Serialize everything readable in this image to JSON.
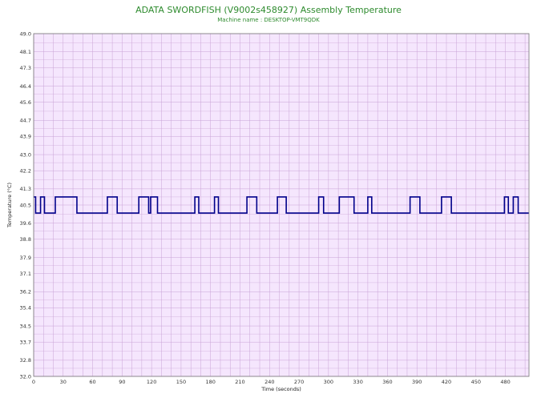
{
  "chart_data": {
    "type": "line",
    "title": "ADATA SWORDFISH (V9002s458927) Assembly Temperature",
    "subtitle": "Machine name : DESKTOP-VMT9QDK",
    "xlabel": "Time (seconds)",
    "ylabel": "Temperature (°C)",
    "xlim": [
      0,
      504
    ],
    "ylim": [
      32.0,
      49.0
    ],
    "x_ticks": [
      0,
      30,
      60,
      90,
      120,
      150,
      180,
      210,
      240,
      270,
      300,
      330,
      360,
      390,
      420,
      450,
      480
    ],
    "y_ticks": [
      32.0,
      32.8,
      33.7,
      34.5,
      35.4,
      36.2,
      37.1,
      37.9,
      38.8,
      39.6,
      40.5,
      41.3,
      42.2,
      43.0,
      43.9,
      44.7,
      45.6,
      46.4,
      47.3,
      48.1,
      49.0
    ],
    "grid": true,
    "colors": {
      "line": "#00008b",
      "plot_background": "#f5e6fd",
      "grid": "#c9a3d6",
      "title": "#2e8b2e"
    },
    "series": [
      {
        "x": [
          0,
          2,
          2,
          7,
          7,
          11,
          11,
          22,
          22,
          44,
          44,
          75,
          75,
          85,
          85,
          107,
          107,
          117,
          117,
          119,
          119,
          126,
          126,
          164,
          164,
          168,
          168,
          184,
          184,
          188,
          188,
          217,
          217,
          227,
          227,
          248,
          248,
          257,
          257,
          290,
          290,
          295,
          295,
          311,
          311,
          326,
          326,
          340,
          340,
          344,
          344,
          383,
          383,
          393,
          393,
          415,
          415,
          425,
          425,
          479,
          479,
          483,
          483,
          488,
          488,
          493,
          493,
          504
        ],
        "y": [
          40.9,
          40.9,
          40.1,
          40.1,
          40.9,
          40.9,
          40.1,
          40.1,
          40.9,
          40.9,
          40.1,
          40.1,
          40.9,
          40.9,
          40.1,
          40.1,
          40.9,
          40.9,
          40.1,
          40.1,
          40.9,
          40.9,
          40.1,
          40.1,
          40.9,
          40.9,
          40.1,
          40.1,
          40.9,
          40.9,
          40.1,
          40.1,
          40.9,
          40.9,
          40.1,
          40.1,
          40.9,
          40.9,
          40.1,
          40.1,
          40.9,
          40.9,
          40.1,
          40.1,
          40.9,
          40.9,
          40.1,
          40.1,
          40.9,
          40.9,
          40.1,
          40.1,
          40.9,
          40.9,
          40.1,
          40.1,
          40.9,
          40.9,
          40.1,
          40.1,
          40.9,
          40.9,
          40.1,
          40.1,
          40.9,
          40.9,
          40.1,
          40.1
        ]
      }
    ]
  }
}
